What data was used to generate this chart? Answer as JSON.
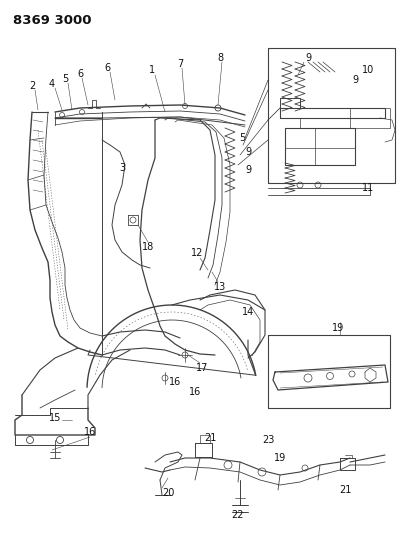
{
  "title": "8369 3000",
  "bg_color": "#ffffff",
  "line_color": "#404040",
  "label_color": "#111111",
  "title_fontsize": 9.5,
  "label_fontsize": 7.0,
  "fig_width": 4.1,
  "fig_height": 5.33,
  "dpi": 100
}
